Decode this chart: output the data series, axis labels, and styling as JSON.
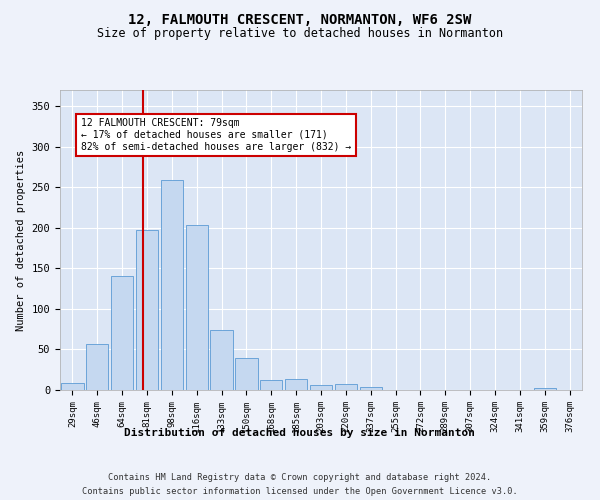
{
  "title": "12, FALMOUTH CRESCENT, NORMANTON, WF6 2SW",
  "subtitle": "Size of property relative to detached houses in Normanton",
  "xlabel": "Distribution of detached houses by size in Normanton",
  "ylabel": "Number of detached properties",
  "bar_color": "#c5d8f0",
  "bar_edge_color": "#5b9bd5",
  "background_color": "#dce6f5",
  "grid_color": "#ffffff",
  "categories": [
    "29sqm",
    "46sqm",
    "64sqm",
    "81sqm",
    "98sqm",
    "116sqm",
    "133sqm",
    "150sqm",
    "168sqm",
    "185sqm",
    "203sqm",
    "220sqm",
    "237sqm",
    "255sqm",
    "272sqm",
    "289sqm",
    "307sqm",
    "324sqm",
    "341sqm",
    "359sqm",
    "376sqm"
  ],
  "values": [
    9,
    57,
    141,
    197,
    259,
    203,
    74,
    40,
    12,
    13,
    6,
    7,
    4,
    0,
    0,
    0,
    0,
    0,
    0,
    3,
    0
  ],
  "red_line_x": 2.85,
  "annotation_text": "12 FALMOUTH CRESCENT: 79sqm\n← 17% of detached houses are smaller (171)\n82% of semi-detached houses are larger (832) →",
  "annotation_box_color": "#ffffff",
  "annotation_box_edge": "#cc0000",
  "red_line_color": "#cc0000",
  "ylim": [
    0,
    370
  ],
  "yticks": [
    0,
    50,
    100,
    150,
    200,
    250,
    300,
    350
  ],
  "footer1": "Contains HM Land Registry data © Crown copyright and database right 2024.",
  "footer2": "Contains public sector information licensed under the Open Government Licence v3.0."
}
